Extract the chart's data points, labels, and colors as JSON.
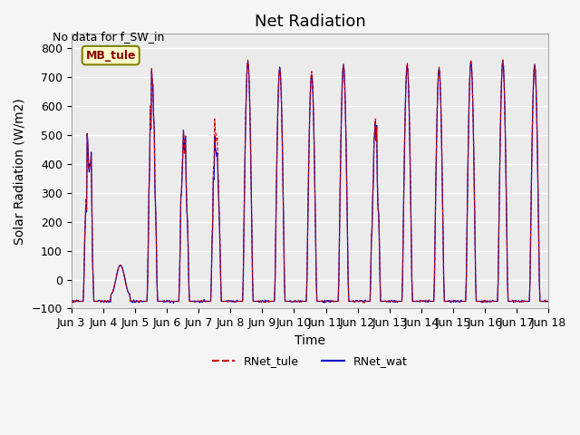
{
  "title": "Net Radiation",
  "xlabel": "Time",
  "ylabel": "Solar Radiation (W/m2)",
  "annotation": "No data for f_SW_in",
  "legend_label": "MB_tule",
  "ylim": [
    -100,
    850
  ],
  "yticks": [
    -100,
    0,
    100,
    200,
    300,
    400,
    500,
    600,
    700,
    800
  ],
  "xtick_labels": [
    "Jun 3",
    "Jun 4",
    "Jun 5",
    "Jun 6",
    "Jun 7",
    "Jun 8",
    "Jun 9",
    "Jun 10",
    "Jun 11",
    "Jun 12",
    "Jun 13",
    "Jun 14",
    "Jun 15",
    "Jun 16",
    "Jun 17",
    "Jun 18"
  ],
  "line1_color": "#cc0000",
  "line2_color": "#0000cc",
  "line1_label": "RNet_tule",
  "line2_label": "RNet_wat",
  "plot_bg_color": "#ebebeb",
  "title_fontsize": 13,
  "label_fontsize": 10,
  "tick_fontsize": 9
}
